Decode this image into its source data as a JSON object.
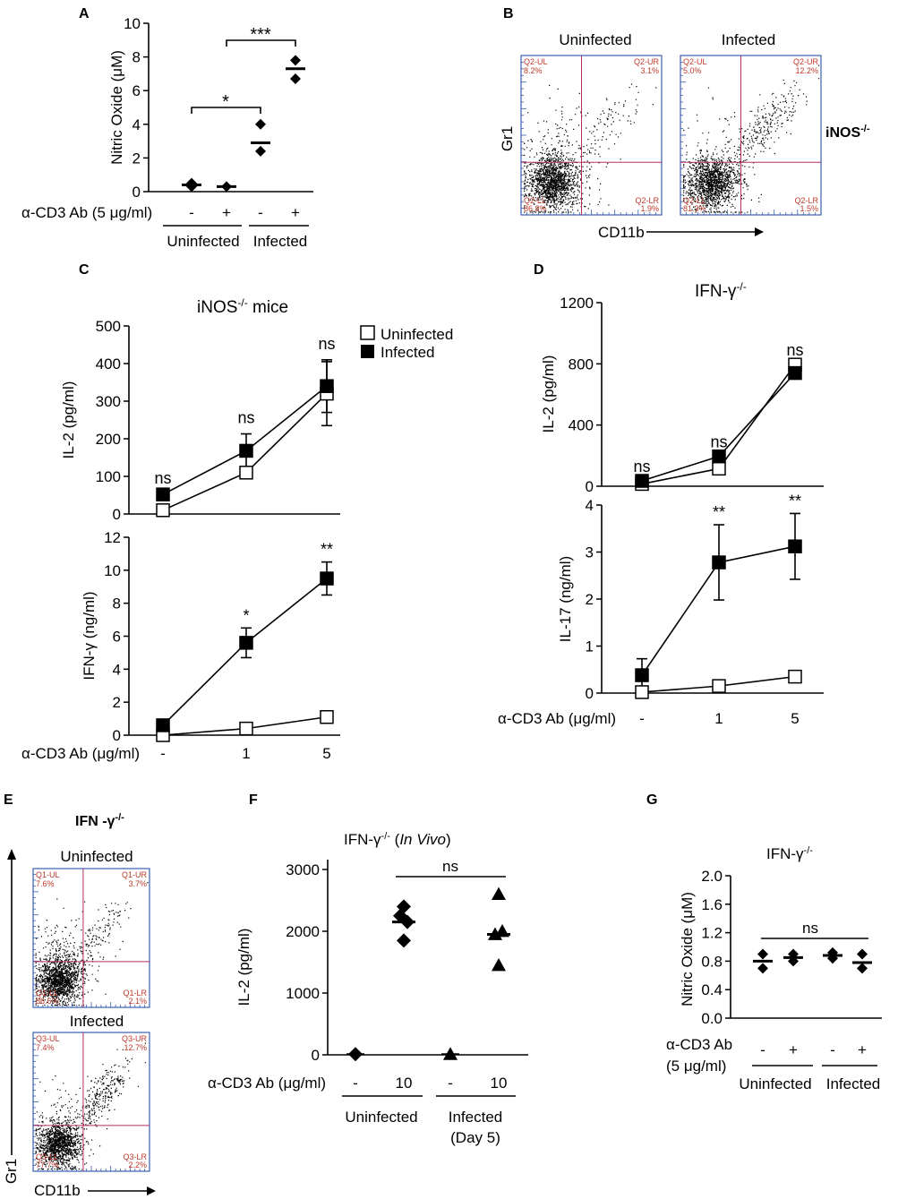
{
  "panels": {
    "A": {
      "label": "A",
      "chart_data": {
        "type": "scatter",
        "ylabel": "Nitric Oxide (μM)",
        "ylim": [
          0,
          10
        ],
        "yticks": [
          0,
          2,
          4,
          6,
          8,
          10
        ],
        "treatment_label": "α-CD3 Ab (5 μg/ml)",
        "treatment": [
          "-",
          "+",
          "-",
          "+"
        ],
        "group_labels": [
          "Uninfected",
          "Infected"
        ],
        "groups": [
          {
            "name": "Uninfected -",
            "mean": 0.4,
            "points": [
              0.3,
              0.5
            ]
          },
          {
            "name": "Uninfected +",
            "mean": 0.3,
            "points": [
              0.3
            ]
          },
          {
            "name": "Infected -",
            "mean": 2.9,
            "points": [
              2.4,
              4.0
            ]
          },
          {
            "name": "Infected +",
            "mean": 7.3,
            "points": [
              6.7,
              7.8
            ]
          }
        ],
        "significance": [
          "*",
          "***"
        ]
      }
    },
    "B": {
      "label": "B",
      "genotype": "iNOS",
      "genotype_sup": "-/-",
      "ylabel": "Gr1",
      "xlabel": "CD11b",
      "plots": [
        {
          "title": "Uninfected",
          "ul_name": "Q2-UL",
          "ul_val": "8.2%",
          "ur_name": "Q2-UR",
          "ur_val": "3.1%",
          "ll_name": "Q2-LL",
          "ll_val": "86.8%",
          "lr_name": "Q2-LR",
          "lr_val": "1.9%"
        },
        {
          "title": "Infected",
          "ul_name": "Q2-UL",
          "ul_val": "5.0%",
          "ur_name": "Q2-UR",
          "ur_val": "12.2%",
          "ll_name": "Q2-LL",
          "ll_val": "81.3%",
          "lr_name": "Q2-LR",
          "lr_val": "1.5%"
        }
      ]
    },
    "C": {
      "label": "C",
      "title": "iNOS",
      "title_sup": "-/-",
      "title_suffix": " mice",
      "legend": [
        "Uninfected",
        "Infected"
      ],
      "xlabel": "α-CD3 Ab (μg/ml)",
      "categories": [
        "-",
        "1",
        "5"
      ],
      "top": {
        "type": "line",
        "ylabel": "IL-2 (pg/ml)",
        "ylim": [
          0,
          500
        ],
        "yticks": [
          0,
          100,
          200,
          300,
          400,
          500
        ],
        "series": [
          {
            "name": "Uninfected",
            "values": [
              10,
              110,
              320
            ],
            "err": [
              0,
              0,
              85
            ]
          },
          {
            "name": "Infected",
            "values": [
              52,
              168,
              340
            ],
            "err": [
              0,
              45,
              70
            ]
          }
        ],
        "significance": [
          "ns",
          "ns",
          "ns"
        ]
      },
      "bottom": {
        "type": "line",
        "ylabel": "IFN-γ (ng/ml)",
        "ylim": [
          0,
          12
        ],
        "yticks": [
          0,
          2,
          4,
          6,
          8,
          10,
          12
        ],
        "series": [
          {
            "name": "Uninfected",
            "values": [
              0,
              0.4,
              1.1
            ],
            "err": [
              0,
              0,
              0
            ]
          },
          {
            "name": "Infected",
            "values": [
              0.6,
              5.6,
              9.5
            ],
            "err": [
              0,
              0.9,
              1.0
            ]
          }
        ],
        "significance": [
          "",
          "*",
          "**"
        ]
      }
    },
    "D": {
      "label": "D",
      "title": "IFN-γ",
      "title_sup": "-/-",
      "xlabel": "α-CD3 Ab (μg/ml)",
      "categories": [
        "-",
        "1",
        "5"
      ],
      "top": {
        "type": "line",
        "ylabel": "IL-2 (pg/ml)",
        "ylim": [
          0,
          1200
        ],
        "yticks": [
          0,
          400,
          800,
          1200
        ],
        "series": [
          {
            "name": "Uninfected",
            "values": [
              15,
              115,
              795
            ],
            "err": [
              0,
              0,
              0
            ]
          },
          {
            "name": "Infected",
            "values": [
              35,
              195,
              740
            ],
            "err": [
              0,
              0,
              0
            ]
          }
        ],
        "significance": [
          "ns",
          "ns",
          "ns"
        ]
      },
      "bottom": {
        "type": "line",
        "ylabel": "IL-17 (ng/ml)",
        "ylim": [
          0,
          4
        ],
        "yticks": [
          0,
          1,
          2,
          3,
          4
        ],
        "series": [
          {
            "name": "Uninfected",
            "values": [
              0.02,
              0.15,
              0.35
            ],
            "err": [
              0,
              0,
              0
            ]
          },
          {
            "name": "Infected",
            "values": [
              0.38,
              2.78,
              3.12
            ],
            "err": [
              0.35,
              0.8,
              0.7
            ]
          }
        ],
        "significance": [
          "",
          "**",
          "**"
        ]
      }
    },
    "E": {
      "label": "E",
      "genotype": "IFN -γ",
      "genotype_sup": "-/-",
      "ylabel": "Gr1",
      "xlabel": "CD11b",
      "plots": [
        {
          "title": "Uninfected",
          "ul_name": "Q1-UL",
          "ul_val": "7.6%",
          "ur_name": "Q1-UR",
          "ur_val": "3.7%",
          "ll_name": "Q1-LL",
          "ll_val": "86.6%",
          "lr_name": "Q1-LR",
          "lr_val": "2.1%"
        },
        {
          "title": "Infected",
          "ul_name": "Q3-UL",
          "ul_val": "7.4%",
          "ur_name": "Q3-UR",
          "ur_val": "12.7%",
          "ll_name": "Q3-LL",
          "ll_val": "77.7%",
          "lr_name": "Q3-LR",
          "lr_val": "2.2%"
        }
      ]
    },
    "F": {
      "label": "F",
      "title": "IFN-γ",
      "title_sup": "-/-",
      "title_suffix": " (",
      "title_italic": "In Vivo",
      "title_close": ")",
      "chart_data": {
        "type": "scatter",
        "ylabel": "IL-2 (pg/ml)",
        "ylim": [
          0,
          3000
        ],
        "yticks": [
          0,
          1000,
          2000,
          3000
        ],
        "treatment_label": "α-CD3 Ab (μg/ml)",
        "treatment": [
          "-",
          "10",
          "-",
          "10"
        ],
        "group_labels": [
          "Uninfected",
          "Infected",
          "(Day 5)"
        ],
        "groups": [
          {
            "name": "Uninfected -",
            "mean": 10,
            "points": [
              10
            ],
            "marker": "diamond"
          },
          {
            "name": "Uninfected 10",
            "mean": 2150,
            "points": [
              2400,
              2250,
              2150,
              1850
            ],
            "marker": "diamond"
          },
          {
            "name": "Infected -",
            "mean": 10,
            "points": [
              10
            ],
            "marker": "triangle"
          },
          {
            "name": "Infected 10",
            "mean": 1950,
            "points": [
              2600,
              2000,
              1950,
              1450
            ],
            "marker": "triangle"
          }
        ],
        "significance": [
          "ns"
        ]
      }
    },
    "G": {
      "label": "G",
      "title": "IFN-γ",
      "title_sup": "-/-",
      "chart_data": {
        "type": "scatter",
        "ylabel": "Nitric Oxide (μM)",
        "ylim": [
          0,
          2.0
        ],
        "yticks": [
          "0.0",
          "0.4",
          "0.8",
          "1.2",
          "1.6",
          "2.0"
        ],
        "treatment_label_1": "α-CD3 Ab",
        "treatment_label_2": "(5 μg/ml)",
        "treatment": [
          "-",
          "+",
          "-",
          "+"
        ],
        "group_labels": [
          "Uninfected",
          "Infected"
        ],
        "groups": [
          {
            "name": "Uninfected -",
            "mean": 0.8,
            "points": [
              0.9,
              0.7
            ]
          },
          {
            "name": "Uninfected +",
            "mean": 0.85,
            "points": [
              0.9,
              0.8
            ]
          },
          {
            "name": "Infected -",
            "mean": 0.88,
            "points": [
              0.92,
              0.84
            ]
          },
          {
            "name": "Infected +",
            "mean": 0.78,
            "points": [
              0.9,
              0.7
            ]
          }
        ],
        "significance": [
          "ns"
        ]
      }
    }
  }
}
